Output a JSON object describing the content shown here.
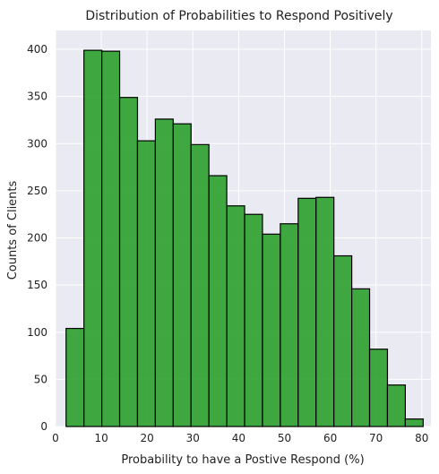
{
  "chart_data": {
    "type": "bar",
    "title": "Distribution of Probabilities to Respond Positively",
    "xlabel": "Probability to have a Postive Respond (%)",
    "ylabel": "Counts of Clients",
    "xlim": [
      0,
      82
    ],
    "ylim": [
      0,
      420
    ],
    "xticks": [
      0,
      10,
      20,
      30,
      40,
      50,
      60,
      70,
      80
    ],
    "yticks": [
      0,
      50,
      100,
      150,
      200,
      250,
      300,
      350,
      400
    ],
    "bin_edges": [
      2.3,
      6.2,
      10.1,
      14.0,
      17.9,
      21.8,
      25.7,
      29.6,
      33.5,
      37.4,
      41.3,
      45.2,
      49.1,
      53.0,
      56.9,
      60.8,
      64.7,
      68.6,
      72.5,
      76.4,
      80.3
    ],
    "values": [
      104,
      399,
      398,
      349,
      303,
      326,
      321,
      299,
      266,
      234,
      225,
      204,
      215,
      242,
      243,
      181,
      146,
      82,
      44,
      8
    ],
    "grid": true,
    "background_color": "#eaeaf2",
    "bar_color": "#2ca02c",
    "bar_edge_color": "#000000"
  }
}
